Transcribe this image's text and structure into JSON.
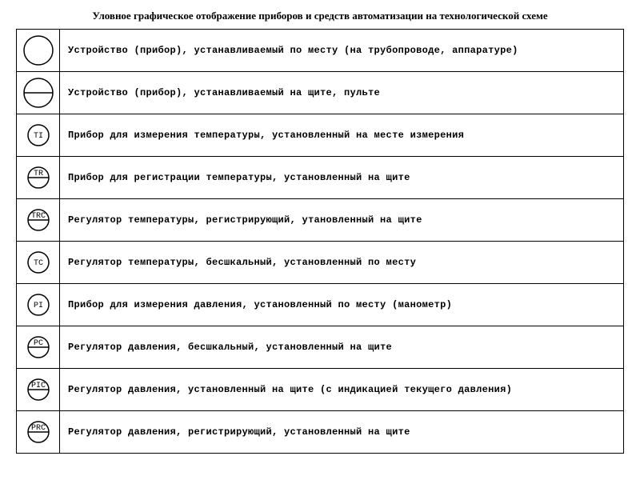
{
  "title": "Уловное графическое отображение приборов и средств автоматизации на технологической схеме",
  "stroke_color": "#000000",
  "stroke_width": 1.5,
  "circle_radius_large": 18,
  "circle_radius_small": 13,
  "rows": [
    {
      "symbol_type": "circle_large",
      "label": "",
      "description": "Устройство (прибор), устанавливаемый по месту (на трубопроводе, аппаратуре)"
    },
    {
      "symbol_type": "circle_large_hline",
      "label": "",
      "description": "Устройство (прибор), устанавливаемый на щите, пульте"
    },
    {
      "symbol_type": "circle_small",
      "label": "TI",
      "description": "Прибор для измерения температуры, установленный на месте измерения"
    },
    {
      "symbol_type": "circle_small_hline",
      "label": "TR",
      "description": "Прибор для регистрации температуры, установленный на щите"
    },
    {
      "symbol_type": "circle_small_hline",
      "label": "TRC",
      "description": "Регулятор температуры, регистрирующий, утановленный на щите"
    },
    {
      "symbol_type": "circle_small",
      "label": "TC",
      "description": "Регулятор температуры, бесшкальный, установленный по месту"
    },
    {
      "symbol_type": "circle_small",
      "label": "PI",
      "description": "Прибор для измерения давления, установленный по месту (манометр)"
    },
    {
      "symbol_type": "circle_small_hline",
      "label": "PC",
      "description": "Регулятор давления, бесшкальный, установленный на щите"
    },
    {
      "symbol_type": "circle_small_hline",
      "label": "PIC",
      "description": "Регулятор давления, установленный на щите (с индикацией текущего давления)"
    },
    {
      "symbol_type": "circle_small_hline",
      "label": "PRC",
      "description": "Регулятор давления, регистрирующий, установленный на щите"
    }
  ]
}
